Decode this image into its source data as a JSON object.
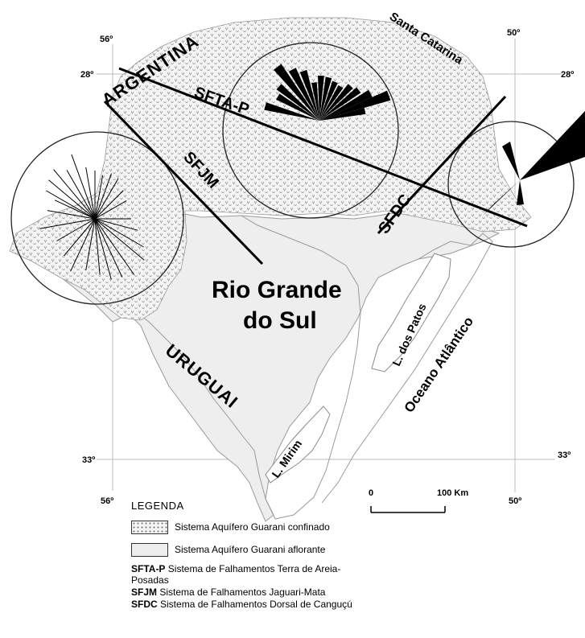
{
  "coordinates": {
    "lon_56_top": "56º",
    "lon_50_top": "50º",
    "lat_28_left": "28º",
    "lat_28_right": "28º",
    "lat_33_left": "33º",
    "lat_33_right": "33º",
    "lon_56_bottom": "56º",
    "lon_50_bottom": "50º"
  },
  "labels": {
    "argentina": "ARGENTINA",
    "santa_catarina": "Santa Catarina",
    "sfta_p": "SFTA-P",
    "sfjm": "SFJM",
    "sfdc": "SFDC",
    "rio_grande_line1": "Rio Grande",
    "rio_grande_line2": "do Sul",
    "uruguai": "URUGUAI",
    "l_dos_patos": "L. dos Patos",
    "oceano": "Oceano Atlântico",
    "l_mirim": "L. Mirim"
  },
  "scale": {
    "start": "0",
    "end": "100 Km"
  },
  "legend": {
    "title": "LEGENDA",
    "items": [
      {
        "label": "Sistema Aquífero Guarani confinado"
      },
      {
        "label": "Sistema Aquífero Guarani aflorante"
      }
    ],
    "abbreviations": [
      {
        "abbr": "SFTA-P",
        "text": "Sistema de Falhamentos Terra de Areia-Posadas"
      },
      {
        "abbr": "SFJM",
        "text": "Sistema de Falhamentos Jaguari-Mata"
      },
      {
        "abbr": "SFDC",
        "text": "Sistema de Falhamentos Dorsal de Canguçú"
      }
    ]
  },
  "colors": {
    "confined_fill": "#f2f2f2",
    "outcrop_fill": "#ededed",
    "ink": "#000000",
    "grid": "#bbbbbb"
  }
}
